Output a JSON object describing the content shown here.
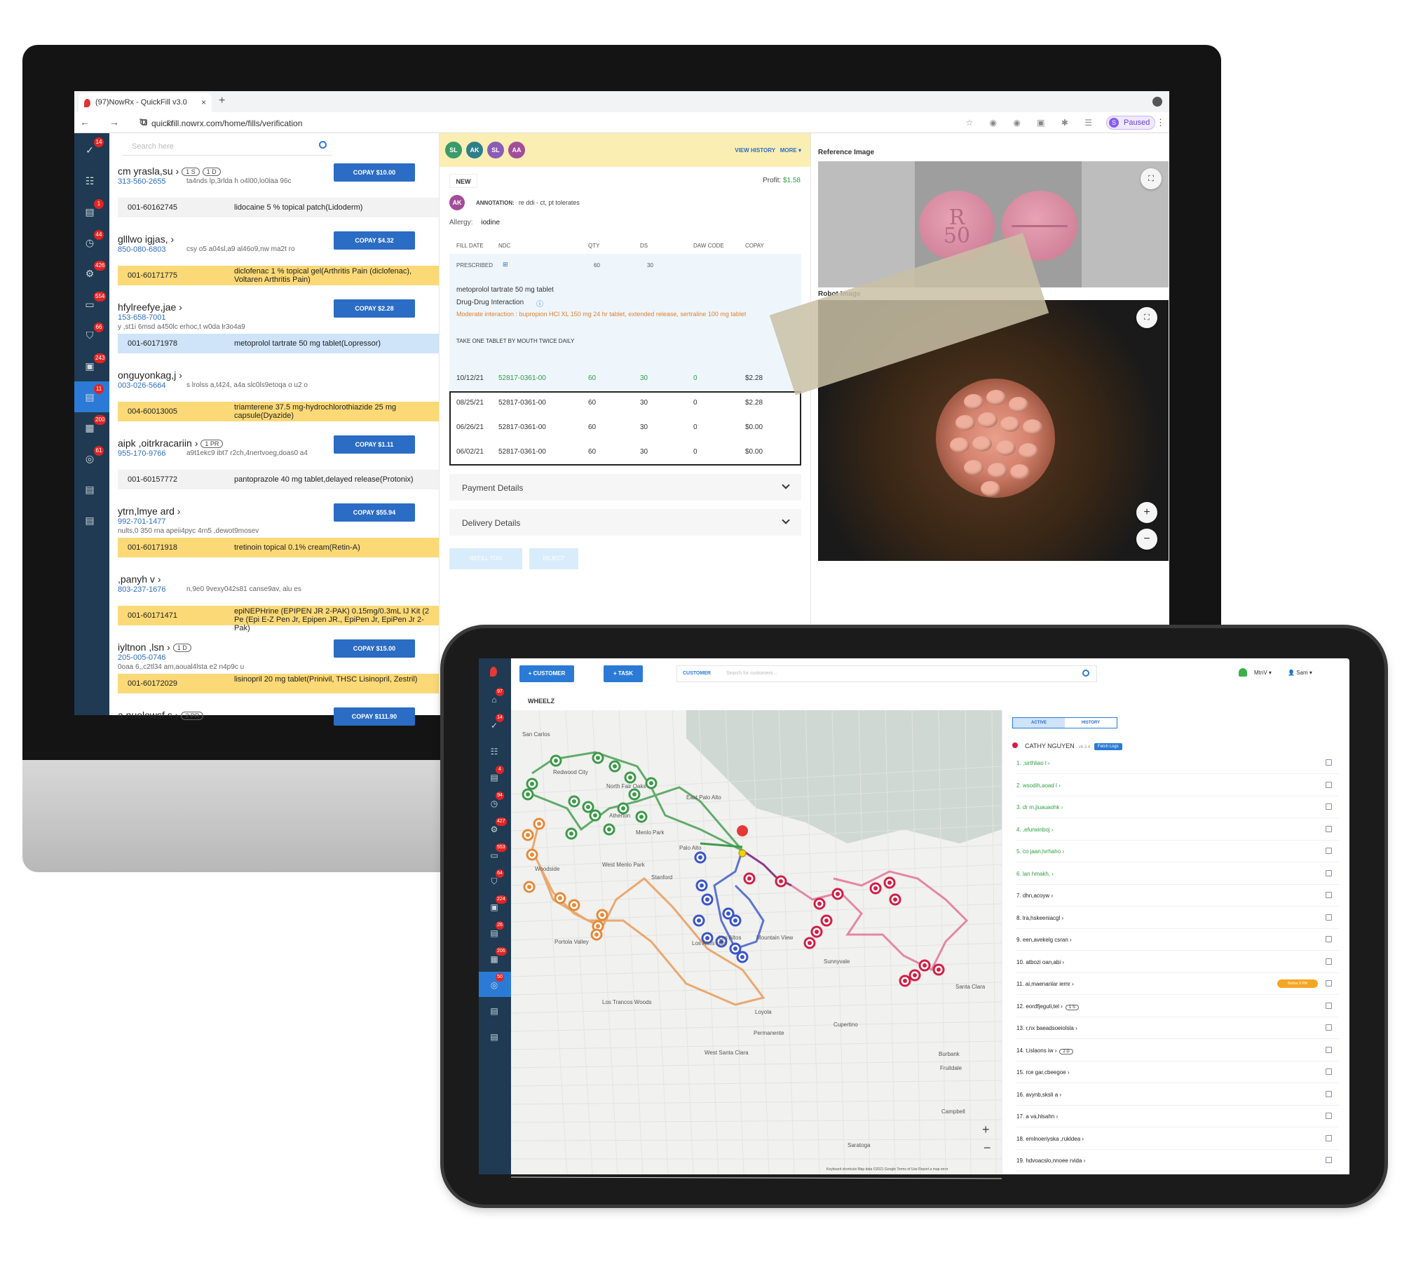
{
  "desktop": {
    "browser": {
      "tab_title": "(97)NowRx - QuickFill v3.0",
      "tab_close": "×",
      "new_tab": "+",
      "nav": "← → ↻ ⌂",
      "url": "quickfill.nowrx.com/home/fills/verification",
      "paused_initial": "S",
      "paused_label": "Paused",
      "menu": "⋮"
    },
    "sidebar_badges": [
      "14",
      "",
      "1",
      "44",
      "426",
      "554",
      "66",
      "243",
      "11",
      "200",
      "61",
      "",
      ""
    ],
    "search_placeholder": "Search here",
    "patients": [
      {
        "name": "cm yrasla,su",
        "pills": [
          "1 S",
          "1 D"
        ],
        "phone": "313-560-2655",
        "addr": "ta4nds lp,3rlda h o4l00,lo0iaa 96c",
        "copay": "COPAY $10.00",
        "rx_num": "001-60162745",
        "drug": "lidocaine 5 % topical patch(Lidoderm)",
        "rx_style": "gray"
      },
      {
        "name": "glllwo igjas,",
        "pills": [],
        "phone": "850-080-6803",
        "addr": "csy o5 a04sl,a9 al46o9,nw ma2t ro",
        "copay": "COPAY $4.32",
        "rx_num": "001-60171775",
        "drug": "diclofenac 1 % topical gel(Arthritis Pain (diclofenac), Voltaren Arthritis Pain)",
        "rx_style": "yellow"
      },
      {
        "name": "hfylreefye,jae",
        "pills": [],
        "phone": "153-658-7001",
        "addr2": "y ,st1i 6msd a450lc erhoc,t w0da lr3o4a9",
        "copay": "COPAY $2.28",
        "rx_num": "001-60171978",
        "drug": "metoprolol tartrate 50 mg tablet(Lopressor)",
        "rx_style": "blue"
      },
      {
        "name": "onguyonkag,j",
        "pills": [],
        "phone": "003-026-5664",
        "addr": "s lrolss a,t424, a4a slc0ls9etoqa o u2 o",
        "copay": "",
        "rx_num": "004-60013005",
        "drug": "triamterene 37.5 mg-hydrochlorothiazide 25 mg capsule(Dyazide)",
        "rx_style": "yellow"
      },
      {
        "name": "aipk ,oitrkracariin",
        "pills": [
          "1 PR"
        ],
        "phone": "955-170-9766",
        "addr": "a9t1ekc9 ibt7 r2ch,4nertvoeg,doas0 a4",
        "copay": "COPAY $1.11",
        "rx_num": "001-60157772",
        "drug": "pantoprazole 40 mg tablet,delayed release(Protonix)",
        "rx_style": "gray"
      },
      {
        "name": "ytrn,lmye ard",
        "pills": [],
        "phone": "992-701-1477",
        "addr2": "nults,0 350 rna apeii4pyc 4rn5 ,dewot9mosev",
        "copay": "COPAY $55.94",
        "rx_num": "001-60171918",
        "drug": "tretinoin topical 0.1% cream(Retin-A)",
        "rx_style": "yellow"
      },
      {
        "name": ",panyh v",
        "pills": [],
        "phone": "803-237-1676",
        "addr": "n,9e0 9vexy042s81 canse9av, alu es",
        "copay": "",
        "rx_num": "001-60171471",
        "drug": "epiNEPHrine (EPIPEN JR 2-PAK) 0.15mg/0.3mL IJ Kit (2 Pe (Epi E-Z Pen Jr, Epipen JR., EpiPen Jr, EpiPen Jr 2-Pak)",
        "rx_style": "yellow"
      },
      {
        "name": "iyltnon ,lsn",
        "pills": [
          "1 D"
        ],
        "phone": "205-005-0746",
        "addr2": "0oaa 6,,c2tl34 am,aoual4lsta e2 n4p9c u",
        "copay": "COPAY $15.00",
        "rx_num": "001-60172029",
        "drug": "lisinopril 20 mg tablet(Prinivil, THSC Lisinopril, Zestril)",
        "rx_style": "yellow"
      },
      {
        "name": "a,nuelowsf s",
        "pills": [
          "2 PR"
        ],
        "phone": "",
        "addr": "",
        "copay": "COPAY $111.90",
        "rx_num": "",
        "drug": "",
        "rx_style": "none"
      }
    ],
    "detail": {
      "avatars": [
        {
          "t": "SL",
          "c": "#3a9a6a"
        },
        {
          "t": "AK",
          "c": "#2f7f8a"
        },
        {
          "t": "SL",
          "c": "#8a5cb8"
        },
        {
          "t": "AA",
          "c": "#a24d9a"
        }
      ],
      "view_history": "VIEW HISTORY",
      "more": "MORE",
      "status": "NEW",
      "profit_label": "Profit:",
      "profit_value": "$1.58",
      "annotation_avatar": "AK",
      "annotation_label": "ANNOTATION:",
      "annotation_text": "re ddi - ct, pt tolerates",
      "allergy_label": "Allergy:",
      "allergy_value": "iodine",
      "columns": [
        "FILL DATE",
        "NDC",
        "QTY",
        "DS",
        "DAW CODE",
        "COPAY"
      ],
      "prescribed_label": "PRESCRIBED",
      "prescribed_qty": "60",
      "prescribed_ds": "30",
      "drug": "metoprolol tartrate 50 mg tablet",
      "ddi_label": "Drug-Drug Interaction",
      "ddi_text": "Moderate interaction : bupropion HCl XL 150 mg 24 hr tablet, extended release, sertraline 100 mg tablet",
      "sig": "TAKE ONE TABLET BY MOUTH TWICE DAILY",
      "history": [
        {
          "date": "10/12/21",
          "ndc": "52817-0361-00",
          "qty": "60",
          "ds": "30",
          "daw": "0",
          "copay": "$2.28"
        },
        {
          "date": "08/25/21",
          "ndc": "52817-0361-00",
          "qty": "60",
          "ds": "30",
          "daw": "0",
          "copay": "$2.28"
        },
        {
          "date": "06/26/21",
          "ndc": "52817-0361-00",
          "qty": "60",
          "ds": "30",
          "daw": "0",
          "copay": "$0.00"
        },
        {
          "date": "06/02/21",
          "ndc": "52817-0361-00",
          "qty": "60",
          "ds": "30",
          "daw": "0",
          "copay": "$0.00"
        }
      ],
      "payment_details": "Payment Details",
      "delivery_details": "Delivery Details",
      "btn_left": "REFILL TOO",
      "btn_right": "REJECT"
    },
    "images": {
      "reference_label": "Reference Image",
      "robot_label": "Robot Image",
      "pill_stamp_top": "R",
      "pill_stamp_bottom": "50",
      "zoom_in": "+",
      "zoom_out": "−",
      "expand": "⛶"
    }
  },
  "tablet": {
    "customer_btn": "+ CUSTOMER",
    "task_btn": "+ TASK",
    "search_label": "CUSTOMER",
    "search_placeholder": "Search for customers...",
    "user_city": "MtnV",
    "user_name": "Sam",
    "section_title": "WHEELZ",
    "sidebar_badges": [
      "",
      "97",
      "14",
      "",
      "4",
      "94",
      "427",
      "553",
      "64",
      "224",
      "26",
      "206",
      "50",
      "",
      ""
    ],
    "map_labels": [
      "San Carlos",
      "Redwood City",
      "North Fair Oaks",
      "Atherton",
      "Menlo Park",
      "Palo Alto",
      "East Palo Alto",
      "West Menlo Park",
      "Stanford",
      "Woodside",
      "Portola Valley",
      "Los Altos Hills",
      "Los Altos",
      "Mountain View",
      "Sunnyvale",
      "Los Trancos Woods",
      "Loyola",
      "Cupertino",
      "Permanente",
      "West Santa Clara",
      "Saratoga",
      "Campbell",
      "Burbank",
      "Fruitdale",
      "Santa Clara"
    ],
    "map_footer": "Keyboard shortcuts   Map data ©2021 Google   Terms of Use   Report a map error",
    "zoom_in": "+",
    "zoom_out": "−",
    "tab_active": "ACTIVE",
    "tab_history": "HISTORY",
    "driver_name": "CATHY NGUYEN",
    "driver_version": "v6.3.4",
    "fetch_logs": "Fetch Logs",
    "eta_chip": "Before 5 PM",
    "stops": [
      {
        "t": "1. ,sirthliao l",
        "done": true
      },
      {
        "t": "2. wsodih,aoad l",
        "done": true
      },
      {
        "t": "3. dr m,jiuauaohk",
        "done": true
      },
      {
        "t": "4. ,efurwinboj",
        "done": true
      },
      {
        "t": "5. co jaan,lvrhaho",
        "done": true
      },
      {
        "t": "6. lan hmakh,",
        "done": true
      },
      {
        "t": "7. dhn,acoyw",
        "done": false
      },
      {
        "t": "8. lra,hskeeniacgl",
        "done": false
      },
      {
        "t": "9. een,avekelg csran",
        "done": false
      },
      {
        "t": "10. atbozi oan,abi",
        "done": false
      },
      {
        "t": "11. ai,maenanlar iemr",
        "done": false,
        "eta": true
      },
      {
        "t": "12. eordfjeguli,tel",
        "done": false,
        "chip": "1 S"
      },
      {
        "t": "13. r,nx baeadsoeiolsla",
        "done": false
      },
      {
        "t": "14. t,islaons iw",
        "done": false,
        "chip": "2 D"
      },
      {
        "t": "15. rce gar,cbeegoe",
        "done": false
      },
      {
        "t": "16. avynb,sksli a",
        "done": false
      },
      {
        "t": "17. a va,hlsahn",
        "done": false
      },
      {
        "t": "18. emlnoeriyska ,rukldea",
        "done": false
      },
      {
        "t": "19. hdvoacslo,nnoee rvida",
        "done": false
      }
    ],
    "colors": {
      "green": "#3d9a4a",
      "orange": "#e58a3a",
      "blue": "#3a55c8",
      "purple": "#8a3a8a",
      "red": "#cf1f47",
      "pink": "#e06d92"
    }
  }
}
